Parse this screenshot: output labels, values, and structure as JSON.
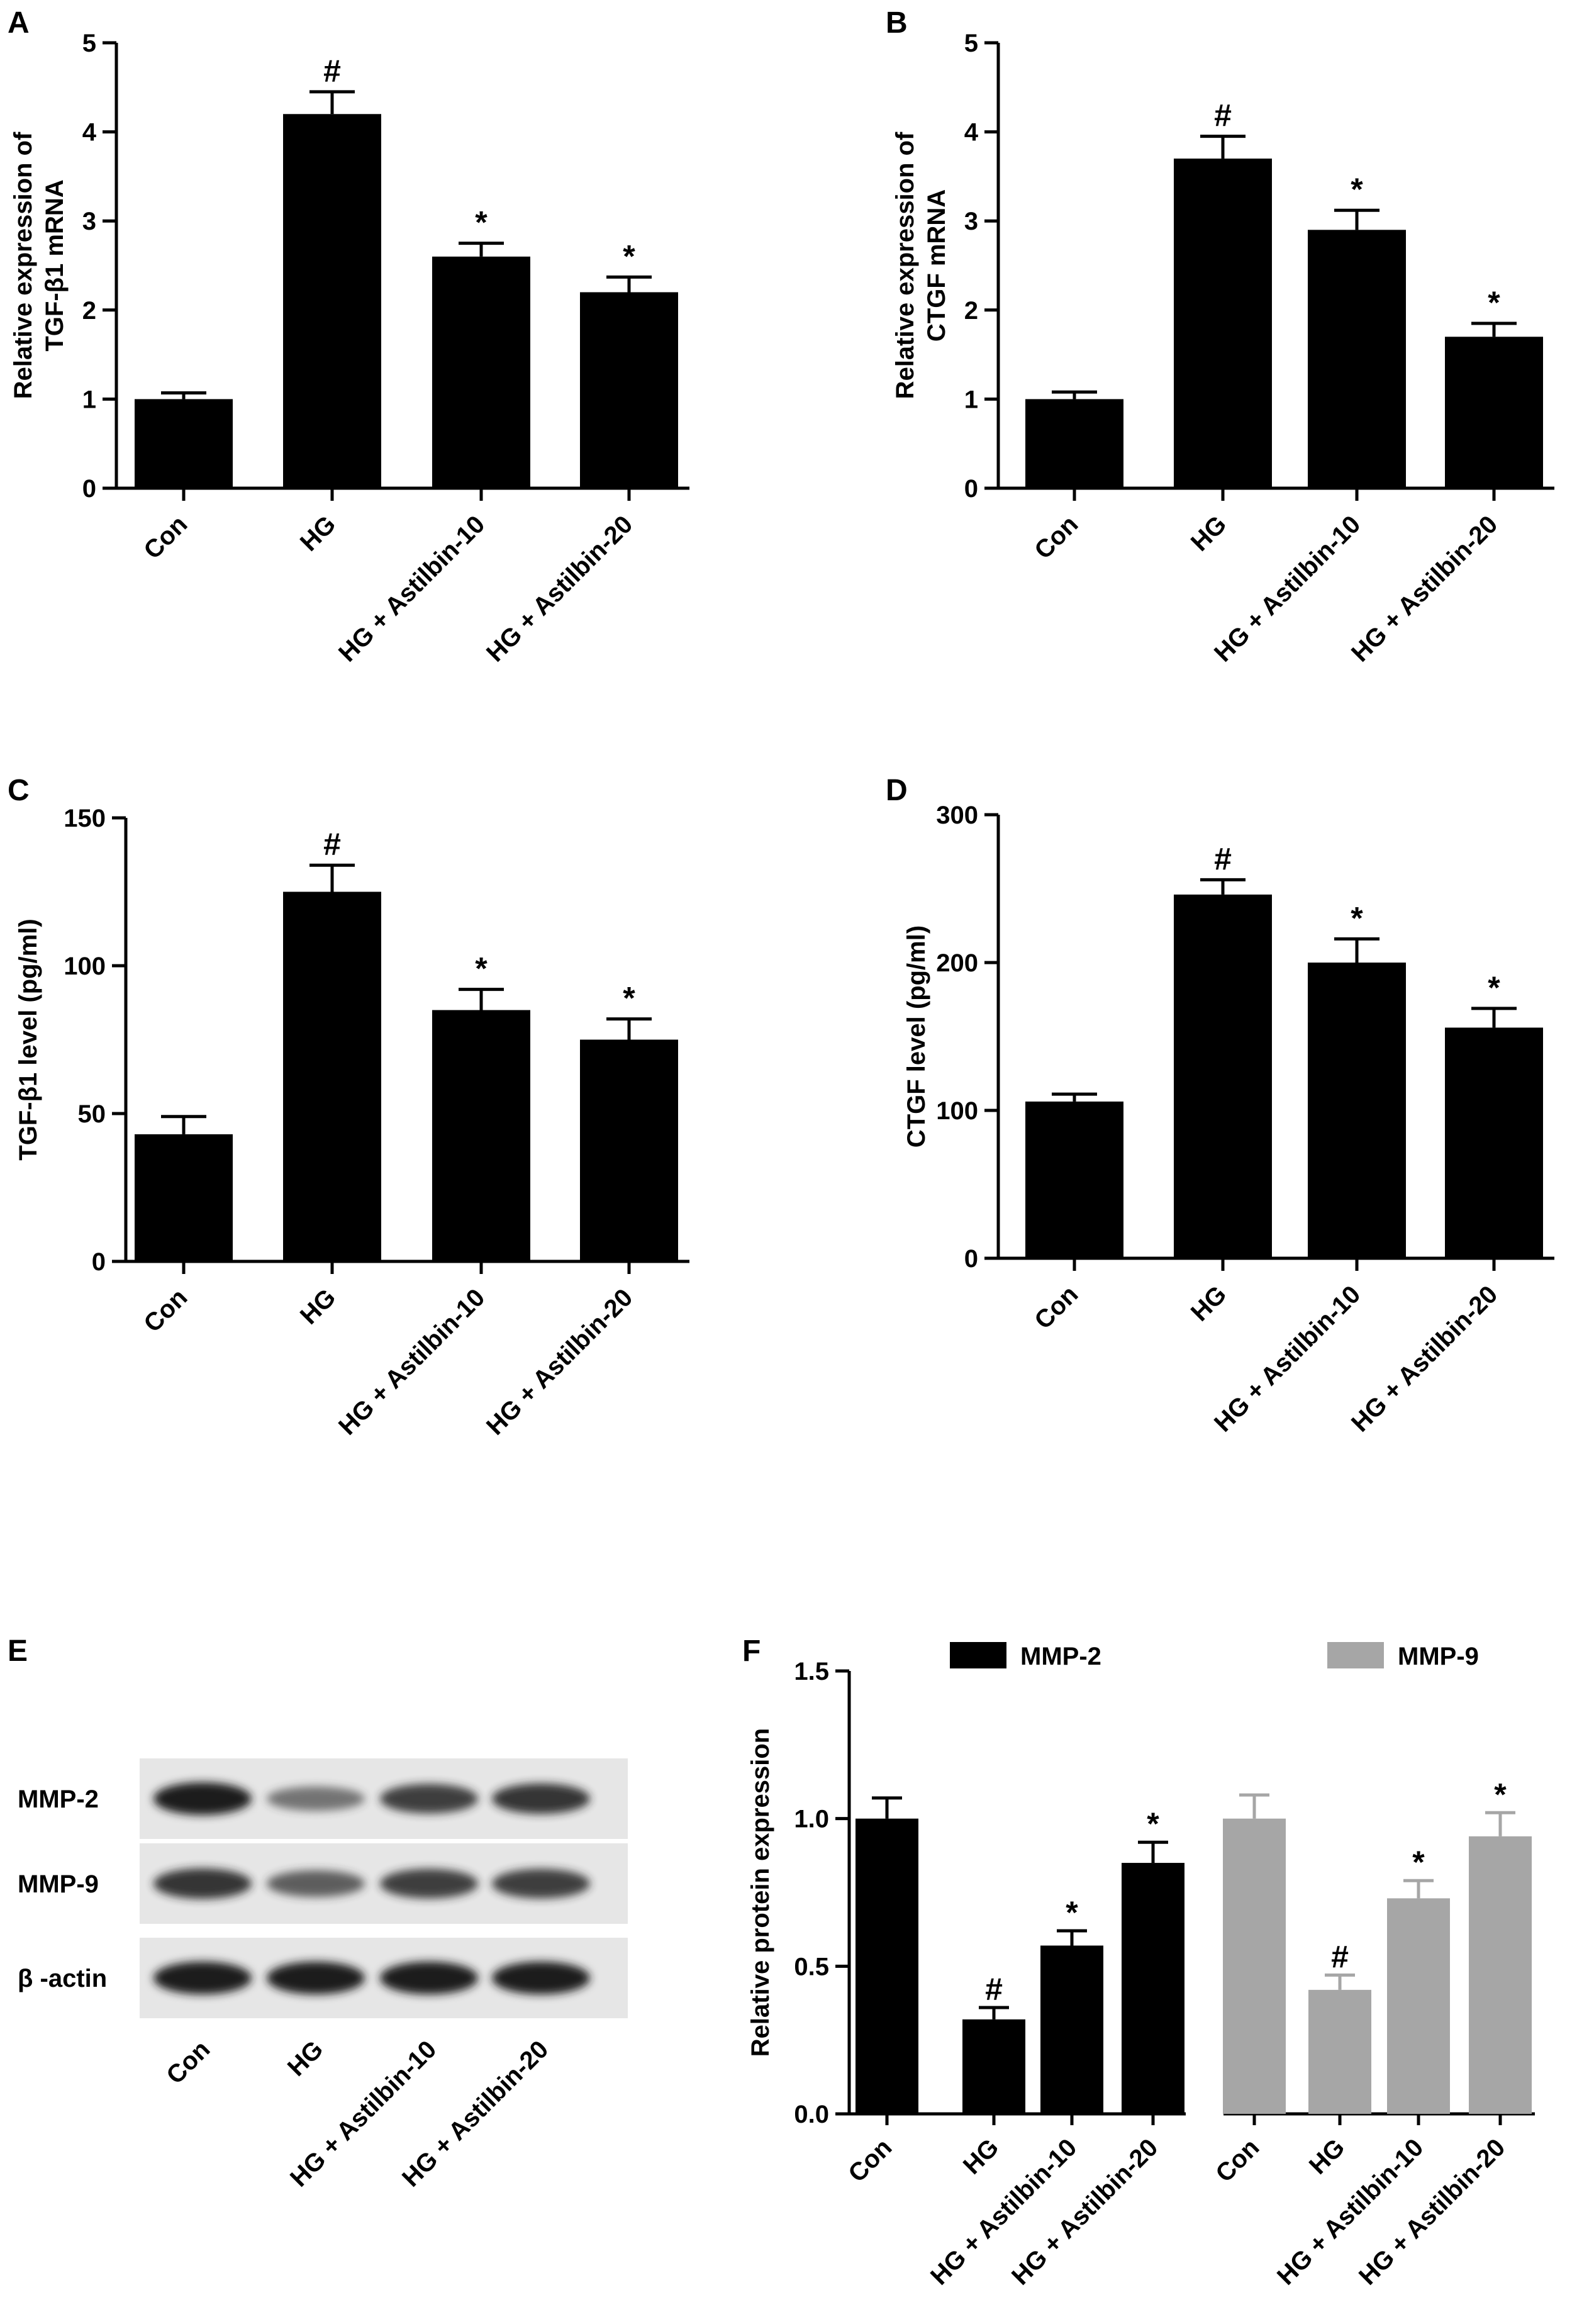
{
  "panels": {
    "a": "A",
    "b": "B",
    "c": "C",
    "d": "D",
    "e": "E",
    "f": "F"
  },
  "blot": {
    "row_labels": [
      "MMP-2",
      "MMP-9",
      "β -actin"
    ],
    "lane_labels": [
      "Con",
      "HG",
      "HG + Astilbin-10",
      "HG + Astilbin-20"
    ],
    "band_intensity": {
      "MMP-2": [
        1.0,
        0.45,
        0.8,
        0.85
      ],
      "MMP-9": [
        0.85,
        0.6,
        0.8,
        0.8
      ],
      "β -actin": [
        1.0,
        1.0,
        1.0,
        1.0
      ]
    }
  },
  "colors": {
    "series_dark": "#000000",
    "series_light": "#a6a6a6",
    "axis": "#000000"
  },
  "chart_data": [
    {
      "id": "A",
      "type": "bar",
      "categories": [
        "Con",
        "HG",
        "HG + Astilbin-10",
        "HG + Astilbin-20"
      ],
      "values": [
        1.0,
        4.2,
        2.6,
        2.2
      ],
      "errors": [
        0.07,
        0.25,
        0.15,
        0.17
      ],
      "significance": [
        "",
        "#",
        "*",
        "*"
      ],
      "ylabel": [
        "Relative expression of",
        "TGF-β1 mRNA"
      ],
      "ylim": [
        0,
        5
      ],
      "yticks": [
        0,
        1,
        2,
        3,
        4,
        5
      ]
    },
    {
      "id": "B",
      "type": "bar",
      "categories": [
        "Con",
        "HG",
        "HG + Astilbin-10",
        "HG + Astilbin-20"
      ],
      "values": [
        1.0,
        3.7,
        2.9,
        1.7
      ],
      "errors": [
        0.08,
        0.25,
        0.22,
        0.15
      ],
      "significance": [
        "",
        "#",
        "*",
        "*"
      ],
      "ylabel": [
        "Relative expression of",
        "CTGF mRNA"
      ],
      "ylim": [
        0,
        5
      ],
      "yticks": [
        0,
        1,
        2,
        3,
        4,
        5
      ]
    },
    {
      "id": "C",
      "type": "bar",
      "categories": [
        "Con",
        "HG",
        "HG + Astilbin-10",
        "HG + Astilbin-20"
      ],
      "values": [
        43,
        125,
        85,
        75
      ],
      "errors": [
        6,
        9,
        7,
        7
      ],
      "significance": [
        "",
        "#",
        "*",
        "*"
      ],
      "ylabel": [
        "TGF-β1 level (pg/ml)"
      ],
      "ylim": [
        0,
        150
      ],
      "yticks": [
        0,
        50,
        100,
        150
      ]
    },
    {
      "id": "D",
      "type": "bar",
      "categories": [
        "Con",
        "HG",
        "HG + Astilbin-10",
        "HG + Astilbin-20"
      ],
      "values": [
        106,
        246,
        200,
        156
      ],
      "errors": [
        5,
        10,
        16,
        13
      ],
      "significance": [
        "",
        "#",
        "*",
        "*"
      ],
      "ylabel": [
        "CTGF level (pg/ml)"
      ],
      "ylim": [
        0,
        300
      ],
      "yticks": [
        0,
        100,
        200,
        300
      ]
    },
    {
      "id": "F",
      "type": "bar",
      "categories": [
        "Con",
        "HG",
        "HG + Astilbin-10",
        "HG + Astilbin-20"
      ],
      "series": [
        {
          "name": "MMP-2",
          "values": [
            1.0,
            0.32,
            0.57,
            0.85
          ],
          "errors": [
            0.07,
            0.04,
            0.05,
            0.07
          ],
          "significance": [
            "",
            "#",
            "*",
            "*"
          ]
        },
        {
          "name": "MMP-9",
          "values": [
            1.0,
            0.42,
            0.73,
            0.94
          ],
          "errors": [
            0.08,
            0.05,
            0.06,
            0.08
          ],
          "significance": [
            "",
            "#",
            "*",
            "*"
          ]
        }
      ],
      "ylabel": [
        "Relative protein expression"
      ],
      "ylim": [
        0,
        1.5
      ],
      "yticks": [
        "0.0",
        "0.5",
        "1.0",
        "1.5"
      ],
      "legend": "top"
    }
  ]
}
